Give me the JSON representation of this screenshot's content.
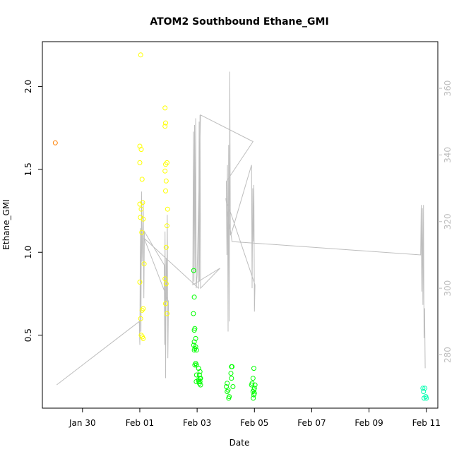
{
  "chart_data": {
    "type": "scatter",
    "title": "ATOM2 Southbound Ethane_GMI",
    "xlabel": "Date",
    "ylabel": "Ethane_GMI",
    "x_ticks": [
      "Jan 30",
      "Feb 01",
      "Feb 03",
      "Feb 05",
      "Feb 07",
      "Feb 09",
      "Feb 11"
    ],
    "x_tick_days": [
      30,
      32,
      34,
      36,
      38,
      40,
      42
    ],
    "xlim_days": [
      28.6,
      42.4
    ],
    "ylim": [
      0.06,
      2.27
    ],
    "y_ticks": [
      0.5,
      1.0,
      1.5,
      2.0
    ],
    "y_tick_labels": [
      "0.5",
      "1.0",
      "1.5",
      "2.0"
    ],
    "y2_ticks": [
      280,
      300,
      320,
      340,
      360
    ],
    "y2_tick_labels": [
      "280",
      "300",
      "320",
      "340",
      "360"
    ],
    "y2lim": [
      264,
      374
    ],
    "grid": false,
    "series": [
      {
        "color": "#ff7f00",
        "points": [
          [
            29.05,
            1.66
          ]
        ]
      },
      {
        "color": "#ffff00",
        "points": [
          [
            32.03,
            2.19
          ],
          [
            32.0,
            1.64
          ],
          [
            32.05,
            1.62
          ],
          [
            32.0,
            1.54
          ],
          [
            32.08,
            1.44
          ],
          [
            32.0,
            1.29
          ],
          [
            32.1,
            1.3
          ],
          [
            32.05,
            1.26
          ],
          [
            32.02,
            1.21
          ],
          [
            32.12,
            1.2
          ],
          [
            32.07,
            1.12
          ],
          [
            32.15,
            0.93
          ],
          [
            32.0,
            0.82
          ],
          [
            32.12,
            0.66
          ],
          [
            32.08,
            0.65
          ],
          [
            32.03,
            0.6
          ],
          [
            32.05,
            0.5
          ],
          [
            32.09,
            0.49
          ],
          [
            32.12,
            0.48
          ],
          [
            32.88,
            1.87
          ],
          [
            32.9,
            1.78
          ],
          [
            32.88,
            1.76
          ],
          [
            32.95,
            1.54
          ],
          [
            32.9,
            1.53
          ],
          [
            32.88,
            1.49
          ],
          [
            32.92,
            1.43
          ],
          [
            32.9,
            1.37
          ],
          [
            32.97,
            1.26
          ],
          [
            32.95,
            1.16
          ],
          [
            32.92,
            1.03
          ],
          [
            32.88,
            0.84
          ],
          [
            32.92,
            0.81
          ],
          [
            32.9,
            0.69
          ],
          [
            32.95,
            0.63
          ]
        ]
      },
      {
        "color": "#00ff00",
        "points": [
          [
            34.05,
            0.3
          ],
          [
            34.1,
            0.28
          ],
          [
            34.08,
            0.26
          ],
          [
            34.12,
            0.24
          ],
          [
            34.05,
            0.23
          ],
          [
            34.1,
            0.22
          ],
          [
            34.08,
            0.21
          ],
          [
            34.12,
            0.2
          ],
          [
            34.06,
            0.22
          ],
          [
            34.1,
            0.24
          ],
          [
            33.88,
            0.89
          ],
          [
            33.9,
            0.73
          ],
          [
            33.87,
            0.63
          ],
          [
            33.92,
            0.54
          ],
          [
            33.9,
            0.53
          ],
          [
            33.95,
            0.48
          ],
          [
            33.9,
            0.46
          ],
          [
            33.88,
            0.44
          ],
          [
            33.95,
            0.43
          ],
          [
            33.92,
            0.42
          ],
          [
            33.9,
            0.41
          ],
          [
            33.98,
            0.41
          ],
          [
            33.95,
            0.33
          ],
          [
            33.98,
            0.32
          ],
          [
            33.92,
            0.32
          ],
          [
            33.98,
            0.26
          ],
          [
            33.97,
            0.22
          ],
          [
            35.05,
            0.21
          ],
          [
            35.02,
            0.19
          ],
          [
            35.08,
            0.17
          ],
          [
            35.05,
            0.16
          ],
          [
            35.12,
            0.13
          ],
          [
            35.1,
            0.12
          ],
          [
            35.2,
            0.31
          ],
          [
            35.22,
            0.31
          ],
          [
            35.18,
            0.27
          ],
          [
            35.2,
            0.24
          ],
          [
            35.25,
            0.19
          ],
          [
            35.98,
            0.3
          ],
          [
            35.95,
            0.24
          ],
          [
            35.92,
            0.21
          ],
          [
            35.9,
            0.2
          ],
          [
            36.02,
            0.2
          ],
          [
            36.0,
            0.18
          ],
          [
            35.98,
            0.17
          ],
          [
            35.95,
            0.16
          ],
          [
            36.0,
            0.15
          ],
          [
            35.98,
            0.14
          ],
          [
            35.96,
            0.12
          ]
        ]
      },
      {
        "color": "#00ffb0",
        "points": [
          [
            41.88,
            0.18
          ],
          [
            41.95,
            0.18
          ],
          [
            41.9,
            0.16
          ],
          [
            41.98,
            0.13
          ],
          [
            41.92,
            0.12
          ],
          [
            42.0,
            0.12
          ]
        ]
      }
    ],
    "secondary_line": {
      "color": "#bebebe",
      "axis": "right",
      "points": [
        [
          29.1,
          271
        ],
        [
          31.98,
          290
        ],
        [
          32.0,
          283
        ],
        [
          32.02,
          318
        ],
        [
          32.04,
          287
        ],
        [
          32.06,
          329
        ],
        [
          32.08,
          308
        ],
        [
          32.1,
          314
        ],
        [
          32.12,
          326
        ],
        [
          32.14,
          297
        ],
        [
          32.16,
          317
        ],
        [
          32.85,
          307
        ],
        [
          32.87,
          283
        ],
        [
          32.88,
          317
        ],
        [
          32.9,
          273
        ],
        [
          32.92,
          309
        ],
        [
          32.94,
          296
        ],
        [
          32.96,
          322
        ],
        [
          32.98,
          279
        ],
        [
          33.0,
          296
        ],
        [
          32.15,
          315
        ],
        [
          34.05,
          300
        ],
        [
          34.07,
          350
        ],
        [
          34.08,
          302
        ],
        [
          34.1,
          352
        ],
        [
          34.12,
          300
        ],
        [
          34.8,
          306
        ],
        [
          33.85,
          301
        ],
        [
          33.87,
          347
        ],
        [
          33.89,
          302
        ],
        [
          33.91,
          349
        ],
        [
          33.93,
          305
        ],
        [
          33.95,
          351
        ],
        [
          33.97,
          300
        ],
        [
          34.0,
          304
        ],
        [
          34.12,
          352
        ],
        [
          35.95,
          344
        ],
        [
          35.02,
          332
        ],
        [
          35.04,
          310
        ],
        [
          35.06,
          337
        ],
        [
          35.08,
          287
        ],
        [
          35.1,
          343
        ],
        [
          35.12,
          290
        ],
        [
          35.14,
          365
        ],
        [
          35.16,
          316
        ],
        [
          35.18,
          316
        ],
        [
          35.9,
          337
        ],
        [
          35.92,
          300
        ],
        [
          35.94,
          330
        ],
        [
          35.96,
          314
        ],
        [
          35.98,
          331
        ],
        [
          36.0,
          293
        ],
        [
          36.02,
          301
        ],
        [
          35.0,
          327
        ],
        [
          35.22,
          314
        ],
        [
          41.8,
          310
        ],
        [
          41.82,
          325
        ],
        [
          41.84,
          299
        ],
        [
          41.86,
          324
        ],
        [
          41.88,
          295
        ],
        [
          41.9,
          325
        ],
        [
          41.92,
          285
        ],
        [
          41.94,
          294
        ],
        [
          41.96,
          276
        ]
      ]
    }
  }
}
